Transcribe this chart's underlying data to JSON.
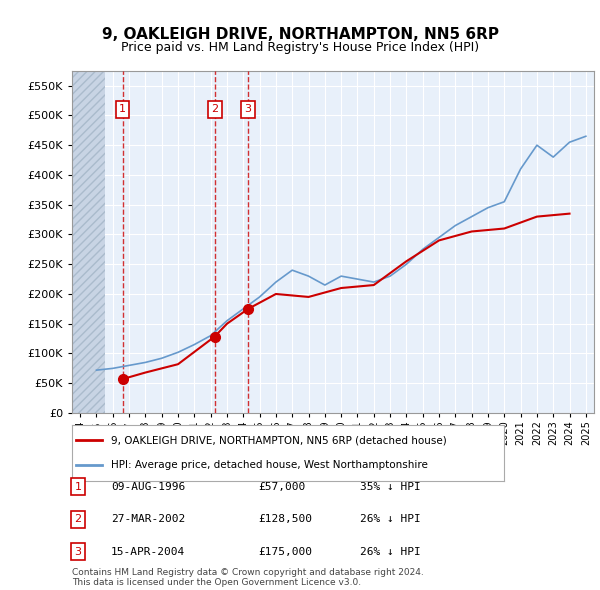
{
  "title": "9, OAKLEIGH DRIVE, NORTHAMPTON, NN5 6RP",
  "subtitle": "Price paid vs. HM Land Registry's House Price Index (HPI)",
  "ylabel": "",
  "ylim": [
    0,
    575000
  ],
  "yticks": [
    0,
    50000,
    100000,
    150000,
    200000,
    250000,
    300000,
    350000,
    400000,
    450000,
    500000,
    550000
  ],
  "ytick_labels": [
    "£0",
    "£50K",
    "£100K",
    "£150K",
    "£200K",
    "£250K",
    "£300K",
    "£350K",
    "£400K",
    "£450K",
    "£500K",
    "£550K"
  ],
  "xlim_start": 1993.5,
  "xlim_end": 2025.5,
  "hatch_end_year": 1995.5,
  "bg_color": "#dce9f7",
  "hatch_color": "#c0c8d8",
  "plot_bg": "#e8f0fa",
  "red_line_color": "#cc0000",
  "blue_line_color": "#6699cc",
  "transaction_marker_color": "#cc0000",
  "transactions": [
    {
      "id": 1,
      "year": 1996.6,
      "price": 57000,
      "date": "09-AUG-1996",
      "label": "£57,000",
      "hpi_pct": "35% ↓ HPI"
    },
    {
      "id": 2,
      "year": 2002.25,
      "price": 128500,
      "date": "27-MAR-2002",
      "label": "£128,500",
      "hpi_pct": "26% ↓ HPI"
    },
    {
      "id": 3,
      "year": 2004.3,
      "price": 175000,
      "date": "15-APR-2004",
      "label": "£175,000",
      "hpi_pct": "26% ↓ HPI"
    }
  ],
  "hpi_years": [
    1995,
    1996,
    1997,
    1998,
    1999,
    2000,
    2001,
    2002,
    2003,
    2004,
    2005,
    2006,
    2007,
    2008,
    2009,
    2010,
    2011,
    2012,
    2013,
    2014,
    2015,
    2016,
    2017,
    2018,
    2019,
    2020,
    2021,
    2022,
    2023,
    2024,
    2025
  ],
  "hpi_values": [
    72000,
    75000,
    80000,
    85000,
    92000,
    102000,
    115000,
    130000,
    155000,
    175000,
    195000,
    220000,
    240000,
    230000,
    215000,
    230000,
    225000,
    220000,
    230000,
    250000,
    275000,
    295000,
    315000,
    330000,
    345000,
    355000,
    410000,
    450000,
    430000,
    455000,
    465000
  ],
  "red_years": [
    1996.6,
    1998,
    2000,
    2002.25,
    2003,
    2004.3,
    2006,
    2008,
    2010,
    2012,
    2014,
    2016,
    2018,
    2020,
    2022,
    2024
  ],
  "red_values": [
    57000,
    68000,
    82000,
    128500,
    150000,
    175000,
    200000,
    195000,
    210000,
    215000,
    255000,
    290000,
    305000,
    310000,
    330000,
    335000
  ],
  "legend_label_red": "9, OAKLEIGH DRIVE, NORTHAMPTON, NN5 6RP (detached house)",
  "legend_label_blue": "HPI: Average price, detached house, West Northamptonshire",
  "footer": "Contains HM Land Registry data © Crown copyright and database right 2024.\nThis data is licensed under the Open Government Licence v3.0."
}
